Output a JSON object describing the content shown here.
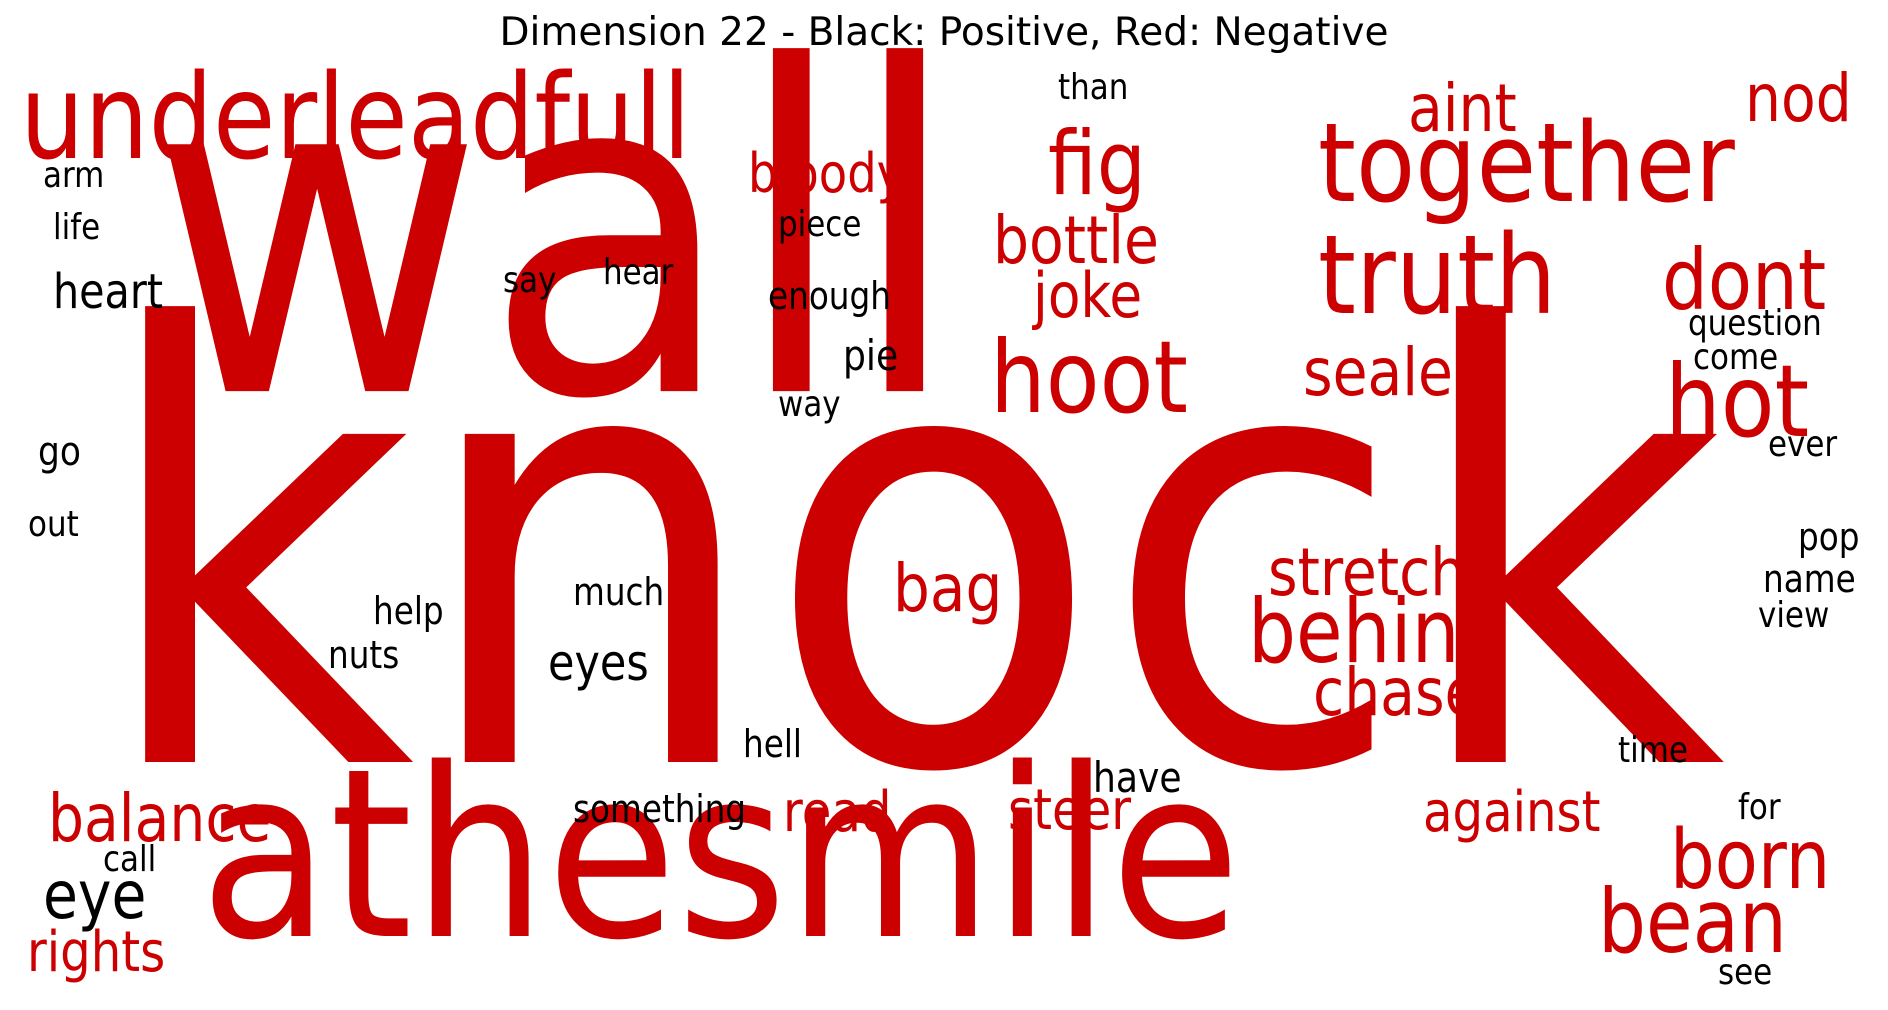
{
  "chart_data": {
    "type": "wordcloud",
    "title": "Dimension 22 - Black: Positive, Red: Negative",
    "colors": {
      "positive": "#000000",
      "negative": "#cc0000"
    },
    "words": [
      {
        "text": "knock",
        "polarity": "negative",
        "weight": 100
      },
      {
        "text": "wall",
        "polarity": "negative",
        "weight": 74
      },
      {
        "text": "athesmile",
        "polarity": "negative",
        "weight": 46
      },
      {
        "text": "underleadfull",
        "polarity": "negative",
        "weight": 18
      },
      {
        "text": "together",
        "polarity": "negative",
        "weight": 16
      },
      {
        "text": "truth",
        "polarity": "negative",
        "weight": 16
      },
      {
        "text": "hoot",
        "polarity": "negative",
        "weight": 14
      },
      {
        "text": "hot",
        "polarity": "negative",
        "weight": 14
      },
      {
        "text": "born",
        "polarity": "negative",
        "weight": 12
      },
      {
        "text": "bean",
        "polarity": "negative",
        "weight": 12
      },
      {
        "text": "behind",
        "polarity": "negative",
        "weight": 12
      },
      {
        "text": "fig",
        "polarity": "negative",
        "weight": 12
      },
      {
        "text": "dont",
        "polarity": "negative",
        "weight": 11
      },
      {
        "text": "stretch",
        "polarity": "negative",
        "weight": 10
      },
      {
        "text": "nod",
        "polarity": "negative",
        "weight": 10
      },
      {
        "text": "bag",
        "polarity": "negative",
        "weight": 10
      },
      {
        "text": "balance",
        "polarity": "negative",
        "weight": 10
      },
      {
        "text": "sealed",
        "polarity": "negative",
        "weight": 10
      },
      {
        "text": "bottle",
        "polarity": "negative",
        "weight": 10
      },
      {
        "text": "chase",
        "polarity": "negative",
        "weight": 10
      },
      {
        "text": "aint",
        "polarity": "negative",
        "weight": 9
      },
      {
        "text": "joke",
        "polarity": "negative",
        "weight": 9
      },
      {
        "text": "rights",
        "polarity": "negative",
        "weight": 8
      },
      {
        "text": "against",
        "polarity": "negative",
        "weight": 8
      },
      {
        "text": "steer",
        "polarity": "negative",
        "weight": 8
      },
      {
        "text": "bloody",
        "polarity": "negative",
        "weight": 8
      },
      {
        "text": "read",
        "polarity": "negative",
        "weight": 8
      },
      {
        "text": "eye",
        "polarity": "positive",
        "weight": 10
      },
      {
        "text": "eyes",
        "polarity": "positive",
        "weight": 7
      },
      {
        "text": "heart",
        "polarity": "positive",
        "weight": 7
      },
      {
        "text": "have",
        "polarity": "positive",
        "weight": 6
      },
      {
        "text": "pie",
        "polarity": "positive",
        "weight": 6
      },
      {
        "text": "question",
        "polarity": "positive",
        "weight": 5
      },
      {
        "text": "something",
        "polarity": "positive",
        "weight": 5
      },
      {
        "text": "hell",
        "polarity": "positive",
        "weight": 5
      },
      {
        "text": "help",
        "polarity": "positive",
        "weight": 5
      },
      {
        "text": "nuts",
        "polarity": "positive",
        "weight": 5
      },
      {
        "text": "much",
        "polarity": "positive",
        "weight": 5
      },
      {
        "text": "pop",
        "polarity": "positive",
        "weight": 5
      },
      {
        "text": "name",
        "polarity": "positive",
        "weight": 5
      },
      {
        "text": "enough",
        "polarity": "positive",
        "weight": 5
      },
      {
        "text": "piece",
        "polarity": "positive",
        "weight": 5
      },
      {
        "text": "hear",
        "polarity": "positive",
        "weight": 5
      },
      {
        "text": "than",
        "polarity": "positive",
        "weight": 5
      },
      {
        "text": "go",
        "polarity": "positive",
        "weight": 5
      },
      {
        "text": "come",
        "polarity": "positive",
        "weight": 5
      },
      {
        "text": "view",
        "polarity": "positive",
        "weight": 5
      },
      {
        "text": "time",
        "polarity": "positive",
        "weight": 5
      },
      {
        "text": "for",
        "polarity": "positive",
        "weight": 5
      },
      {
        "text": "see",
        "polarity": "positive",
        "weight": 5
      },
      {
        "text": "ever",
        "polarity": "positive",
        "weight": 5
      },
      {
        "text": "way",
        "polarity": "positive",
        "weight": 5
      },
      {
        "text": "say",
        "polarity": "positive",
        "weight": 5
      },
      {
        "text": "out",
        "polarity": "positive",
        "weight": 5
      },
      {
        "text": "life",
        "polarity": "positive",
        "weight": 5
      },
      {
        "text": "arm",
        "polarity": "positive",
        "weight": 5
      },
      {
        "text": "call",
        "polarity": "positive",
        "weight": 5
      }
    ]
  }
}
